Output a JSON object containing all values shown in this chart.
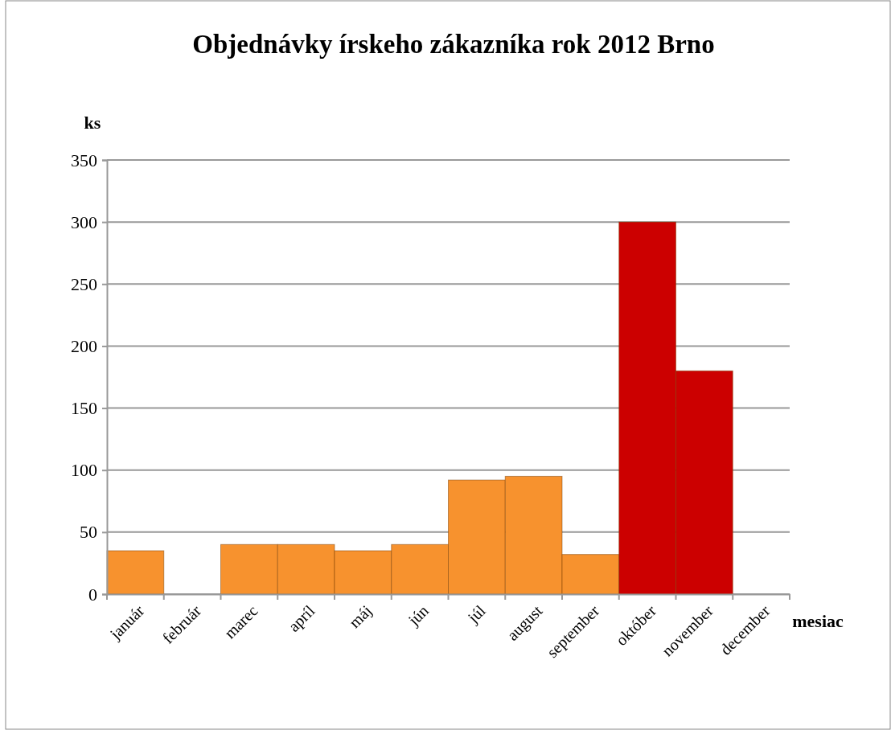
{
  "chart_data": {
    "type": "bar",
    "title": "Objednávky írskeho zákazníka rok 2012 Brno",
    "xlabel": "mesiac",
    "ylabel": "ks",
    "categories": [
      "január",
      "február",
      "marec",
      "apríl",
      "máj",
      "jún",
      "júl",
      "august",
      "september",
      "október",
      "november",
      "december"
    ],
    "values": [
      35,
      0,
      40,
      40,
      35,
      40,
      92,
      95,
      32,
      300,
      180,
      0
    ],
    "colors": [
      "#f7922e",
      "#f7922e",
      "#f7922e",
      "#f7922e",
      "#f7922e",
      "#f7922e",
      "#f7922e",
      "#f7922e",
      "#f7922e",
      "#cc0000",
      "#cc0000",
      "#cc0000"
    ],
    "ylim": [
      0,
      350
    ],
    "yticks": [
      0,
      50,
      100,
      150,
      200,
      250,
      300,
      350
    ],
    "grid": "y"
  }
}
